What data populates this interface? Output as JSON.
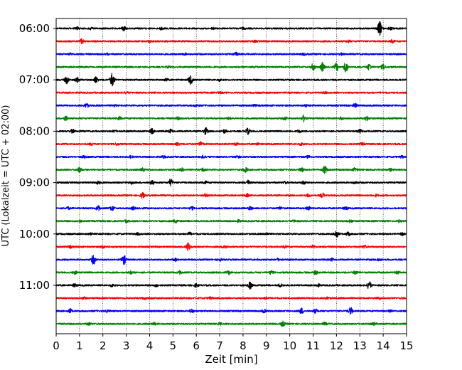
{
  "chart_data": {
    "type": "line",
    "title": "",
    "xlabel": "Zeit  [min]",
    "ylabel": "UTC (Lokalzeit = UTC + 02:00)",
    "xlim": [
      0,
      15
    ],
    "x_ticks": [
      0,
      1,
      2,
      3,
      4,
      5,
      6,
      7,
      8,
      9,
      10,
      11,
      12,
      13,
      14,
      15
    ],
    "y_tick_labels": [
      "06:00",
      "07:00",
      "08:00",
      "09:00",
      "10:00",
      "11:00"
    ],
    "grid": "vertical dotted",
    "series_colors": [
      "#000000",
      "#ff0000",
      "#0000ff",
      "#008000"
    ],
    "traces": [
      {
        "time": "06:00",
        "color": "#000000",
        "events": [
          [
            0.9,
            0.5
          ],
          [
            1.5,
            0.3
          ],
          [
            2.9,
            0.8
          ],
          [
            4.5,
            0.4
          ],
          [
            6.7,
            0.3
          ],
          [
            8.0,
            0.3
          ],
          [
            13.85,
            3.0
          ],
          [
            14.3,
            0.5
          ]
        ]
      },
      {
        "time": "06:15",
        "color": "#ff0000",
        "events": [
          [
            1.1,
            1.0
          ],
          [
            4.0,
            0.3
          ],
          [
            8.5,
            0.3
          ],
          [
            12.5,
            0.4
          ],
          [
            14.4,
            0.6
          ]
        ]
      },
      {
        "time": "06:30",
        "color": "#0000ff",
        "events": [
          [
            0.6,
            0.4
          ],
          [
            2.2,
            0.3
          ],
          [
            5.5,
            0.3
          ],
          [
            7.7,
            0.6
          ],
          [
            10.6,
            0.4
          ],
          [
            12.2,
            0.3
          ]
        ]
      },
      {
        "time": "06:45",
        "color": "#008000",
        "events": [
          [
            4.8,
            0.3
          ],
          [
            8.5,
            0.3
          ],
          [
            11.0,
            1.4
          ],
          [
            11.4,
            1.8
          ],
          [
            12.0,
            1.6
          ],
          [
            12.4,
            2.2
          ],
          [
            13.4,
            1.3
          ],
          [
            14.0,
            1.0
          ]
        ]
      },
      {
        "time": "07:00",
        "color": "#000000",
        "events": [
          [
            0.45,
            1.5
          ],
          [
            0.9,
            1.0
          ],
          [
            1.7,
            1.3
          ],
          [
            2.4,
            2.8
          ],
          [
            4.7,
            0.6
          ],
          [
            5.75,
            1.8
          ],
          [
            7.0,
            0.4
          ]
        ]
      },
      {
        "time": "07:15",
        "color": "#ff0000",
        "events": [
          [
            3.0,
            0.3
          ],
          [
            7.0,
            0.3
          ],
          [
            11.5,
            0.3
          ]
        ]
      },
      {
        "time": "07:30",
        "color": "#0000ff",
        "events": [
          [
            1.3,
            0.9
          ],
          [
            2.5,
            0.4
          ],
          [
            6.0,
            0.4
          ],
          [
            8.5,
            0.3
          ],
          [
            10.7,
            0.4
          ],
          [
            12.8,
            0.8
          ]
        ]
      },
      {
        "time": "07:45",
        "color": "#008000",
        "events": [
          [
            0.4,
            1.0
          ],
          [
            2.7,
            0.6
          ],
          [
            5.2,
            0.5
          ],
          [
            7.4,
            0.4
          ],
          [
            9.8,
            0.6
          ],
          [
            10.6,
            1.3
          ],
          [
            12.2,
            0.5
          ],
          [
            13.3,
            0.8
          ]
        ]
      },
      {
        "time": "08:00",
        "color": "#000000",
        "events": [
          [
            0.7,
            0.7
          ],
          [
            2.5,
            0.4
          ],
          [
            4.1,
            1.1
          ],
          [
            4.9,
            0.7
          ],
          [
            6.4,
            1.4
          ],
          [
            7.2,
            0.7
          ],
          [
            8.2,
            1.2
          ],
          [
            10.4,
            0.5
          ],
          [
            13.0,
            0.7
          ]
        ]
      },
      {
        "time": "08:15",
        "color": "#ff0000",
        "events": [
          [
            1.5,
            0.4
          ],
          [
            2.6,
            0.4
          ],
          [
            5.2,
            0.6
          ],
          [
            6.2,
            1.0
          ],
          [
            7.7,
            0.5
          ],
          [
            8.6,
            0.4
          ],
          [
            10.5,
            0.5
          ],
          [
            13.1,
            0.5
          ]
        ]
      },
      {
        "time": "08:30",
        "color": "#0000ff",
        "events": [
          [
            1.2,
            0.5
          ],
          [
            3.2,
            0.4
          ],
          [
            4.6,
            0.4
          ],
          [
            6.3,
            0.5
          ],
          [
            7.8,
            0.4
          ],
          [
            10.8,
            0.5
          ],
          [
            14.8,
            0.4
          ]
        ]
      },
      {
        "time": "08:45",
        "color": "#008000",
        "events": [
          [
            1.0,
            1.0
          ],
          [
            3.7,
            0.6
          ],
          [
            5.4,
            0.5
          ],
          [
            6.3,
            0.7
          ],
          [
            8.1,
            1.0
          ],
          [
            10.5,
            0.8
          ],
          [
            11.5,
            1.6
          ],
          [
            12.8,
            0.8
          ],
          [
            14.3,
            0.5
          ]
        ]
      },
      {
        "time": "09:00",
        "color": "#000000",
        "events": [
          [
            1.8,
            0.5
          ],
          [
            3.2,
            0.6
          ],
          [
            4.1,
            0.8
          ],
          [
            4.9,
            1.4
          ],
          [
            6.4,
            0.5
          ],
          [
            8.2,
            0.9
          ],
          [
            9.8,
            0.4
          ],
          [
            10.6,
            0.7
          ],
          [
            12.8,
            0.4
          ]
        ]
      },
      {
        "time": "09:15",
        "color": "#ff0000",
        "events": [
          [
            3.7,
            1.1
          ],
          [
            6.4,
            0.5
          ],
          [
            8.2,
            0.6
          ],
          [
            10.8,
            0.5
          ],
          [
            11.4,
            0.9
          ],
          [
            13.7,
            0.4
          ]
        ]
      },
      {
        "time": "09:30",
        "color": "#0000ff",
        "events": [
          [
            0.5,
            0.5
          ],
          [
            1.8,
            1.0
          ],
          [
            2.4,
            1.0
          ],
          [
            3.3,
            0.5
          ],
          [
            5.8,
            0.6
          ],
          [
            8.3,
            0.6
          ],
          [
            9.6,
            0.5
          ],
          [
            10.8,
            0.7
          ],
          [
            12.4,
            0.6
          ]
        ]
      },
      {
        "time": "09:45",
        "color": "#008000",
        "events": [
          [
            1.0,
            0.5
          ],
          [
            3.0,
            0.4
          ],
          [
            5.1,
            0.6
          ],
          [
            7.8,
            0.4
          ],
          [
            10.2,
            0.4
          ],
          [
            12.6,
            0.5
          ],
          [
            14.7,
            0.4
          ]
        ]
      },
      {
        "time": "10:00",
        "color": "#000000",
        "events": [
          [
            1.5,
            0.4
          ],
          [
            3.5,
            0.4
          ],
          [
            5.7,
            0.6
          ],
          [
            9.0,
            0.4
          ],
          [
            12.0,
            1.6
          ],
          [
            12.5,
            0.8
          ],
          [
            14.8,
            0.5
          ]
        ]
      },
      {
        "time": "10:15",
        "color": "#ff0000",
        "events": [
          [
            0.6,
            0.4
          ],
          [
            2.0,
            0.5
          ],
          [
            5.65,
            1.6
          ],
          [
            7.2,
            0.8
          ],
          [
            9.8,
            0.4
          ],
          [
            11.0,
            0.6
          ],
          [
            13.2,
            0.6
          ]
        ]
      },
      {
        "time": "10:30",
        "color": "#0000ff",
        "events": [
          [
            1.6,
            2.0
          ],
          [
            2.9,
            2.0
          ],
          [
            5.1,
            0.6
          ],
          [
            7.0,
            0.5
          ],
          [
            9.5,
            0.4
          ],
          [
            11.8,
            0.5
          ],
          [
            13.8,
            0.5
          ]
        ]
      },
      {
        "time": "10:45",
        "color": "#008000",
        "events": [
          [
            0.8,
            0.6
          ],
          [
            3.2,
            0.5
          ],
          [
            5.3,
            0.6
          ],
          [
            7.4,
            0.7
          ],
          [
            9.2,
            0.7
          ],
          [
            11.1,
            0.8
          ],
          [
            12.8,
            0.6
          ],
          [
            14.6,
            0.6
          ]
        ]
      },
      {
        "time": "11:00",
        "color": "#000000",
        "events": [
          [
            0.8,
            0.6
          ],
          [
            2.4,
            0.5
          ],
          [
            4.3,
            0.6
          ],
          [
            6.0,
            0.6
          ],
          [
            8.3,
            1.4
          ],
          [
            9.6,
            0.6
          ],
          [
            11.2,
            0.6
          ],
          [
            13.4,
            1.6
          ]
        ]
      },
      {
        "time": "11:15",
        "color": "#ff0000",
        "events": [
          [
            1.2,
            0.4
          ],
          [
            3.8,
            0.4
          ],
          [
            6.6,
            0.4
          ],
          [
            9.0,
            0.4
          ],
          [
            11.6,
            0.4
          ],
          [
            13.8,
            0.5
          ]
        ]
      },
      {
        "time": "11:30",
        "color": "#0000ff",
        "events": [
          [
            0.6,
            0.8
          ],
          [
            2.2,
            0.5
          ],
          [
            5.8,
            0.8
          ],
          [
            8.9,
            0.6
          ],
          [
            10.5,
            1.2
          ],
          [
            11.1,
            0.8
          ],
          [
            12.6,
            1.5
          ],
          [
            14.3,
            0.6
          ]
        ]
      },
      {
        "time": "11:45",
        "color": "#008000",
        "events": [
          [
            1.4,
            0.5
          ],
          [
            4.2,
            0.5
          ],
          [
            7.0,
            0.4
          ],
          [
            9.7,
            1.0
          ],
          [
            11.5,
            0.5
          ],
          [
            13.6,
            0.5
          ]
        ]
      }
    ]
  }
}
